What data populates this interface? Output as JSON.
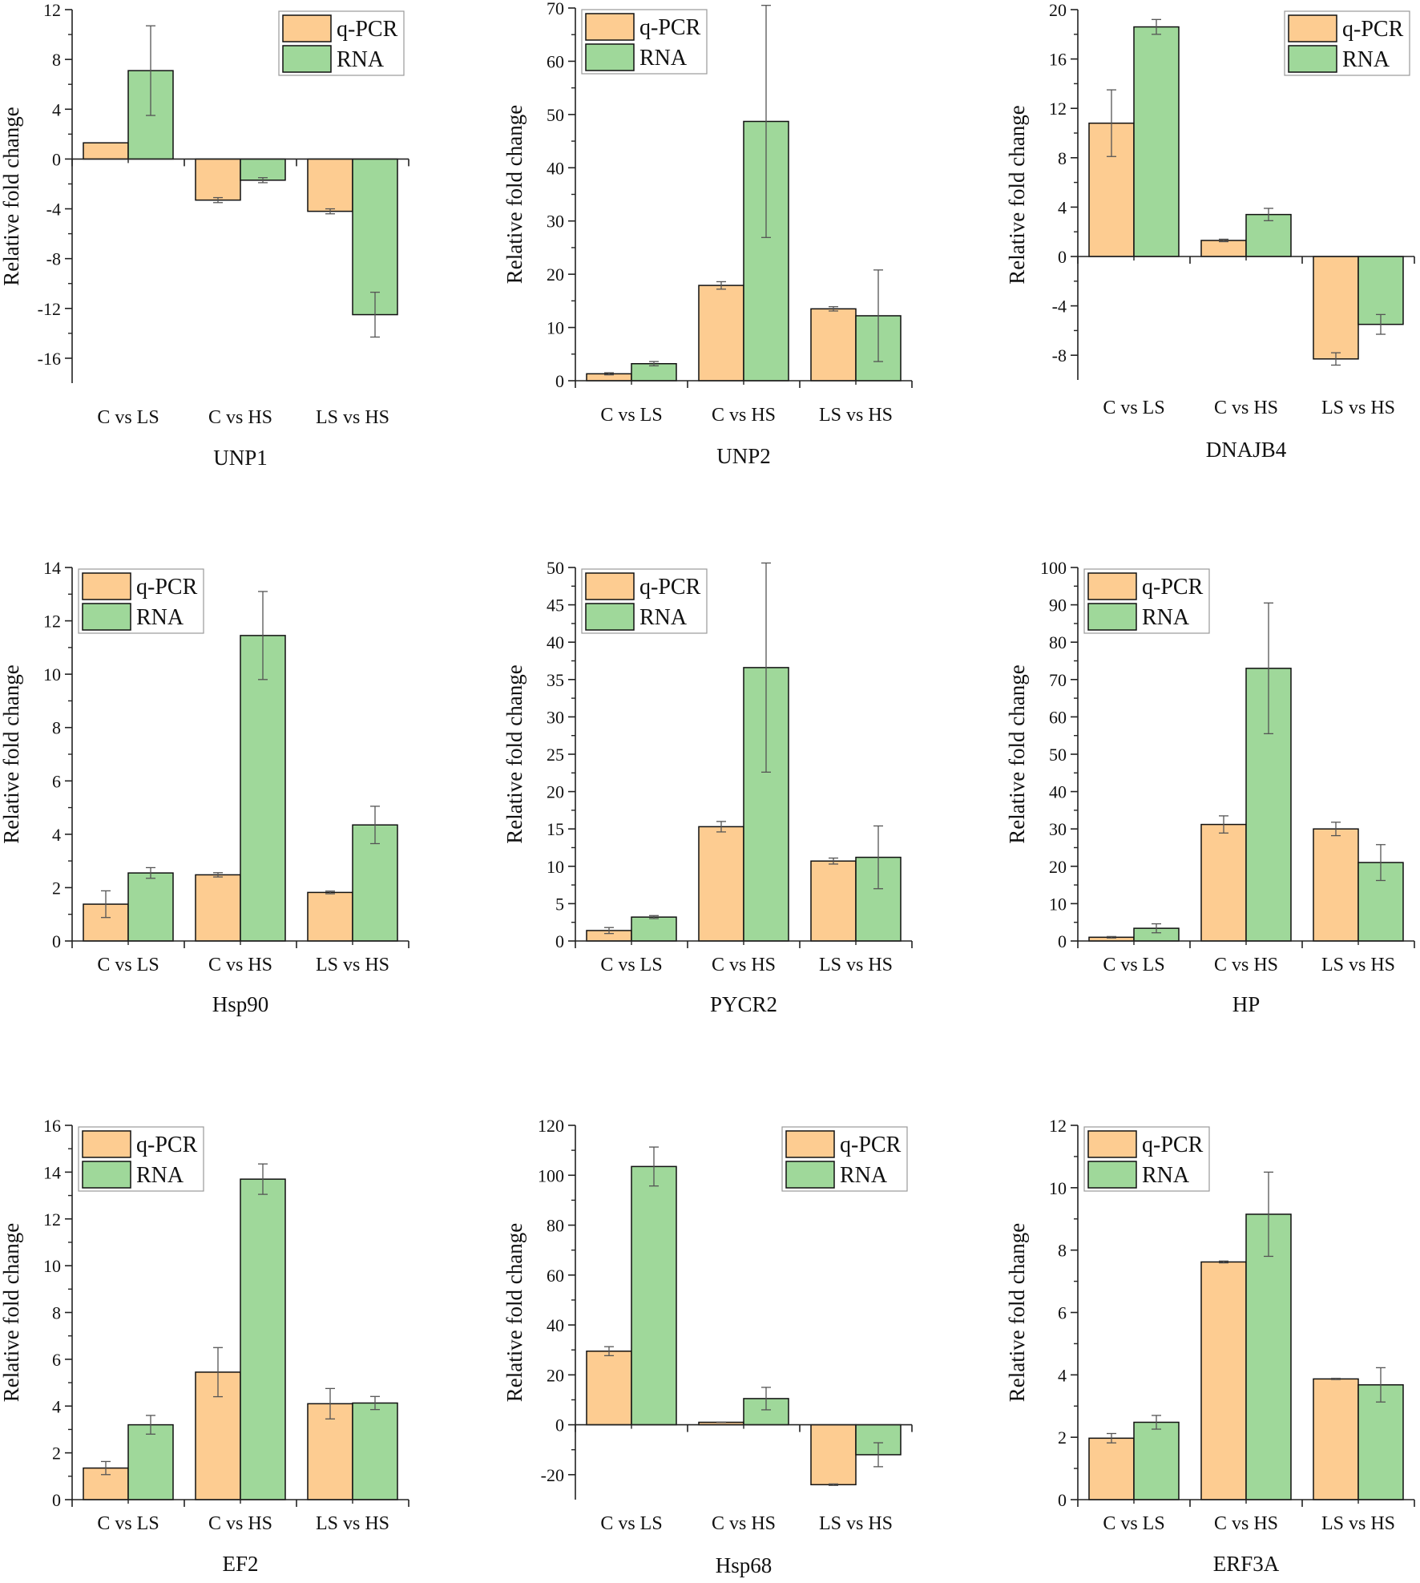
{
  "colors": {
    "qpcr": "#FDCC91",
    "rna": "#9FD89A",
    "axis": "#222222",
    "error": "#555555"
  },
  "chart_data": [
    {
      "type": "bar",
      "title": "UNP1",
      "ylabel": "Relative fold change",
      "categories": [
        "C vs LS",
        "C vs HS",
        "LS vs HS"
      ],
      "ylim": [
        -18,
        12
      ],
      "yticks": [
        -16,
        -12,
        -8,
        -4,
        0,
        4,
        8,
        12
      ],
      "legend": "top-right",
      "series": [
        {
          "name": "q-PCR",
          "values": [
            1.3,
            -3.3,
            -4.2
          ],
          "errors": [
            0,
            0.2,
            0.2
          ]
        },
        {
          "name": "RNA",
          "values": [
            7.1,
            -1.7,
            -12.5
          ],
          "errors": [
            3.6,
            0.2,
            1.8
          ]
        }
      ]
    },
    {
      "type": "bar",
      "title": "UNP2",
      "ylabel": "Relative fold change",
      "categories": [
        "C vs LS",
        "C vs HS",
        "LS vs HS"
      ],
      "ylim": [
        0,
        70
      ],
      "yticks": [
        0,
        10,
        20,
        30,
        40,
        50,
        60,
        70
      ],
      "legend": "top-left",
      "series": [
        {
          "name": "q-PCR",
          "values": [
            1.3,
            17.9,
            13.5
          ],
          "errors": [
            0.2,
            0.7,
            0.4
          ]
        },
        {
          "name": "RNA",
          "values": [
            3.2,
            48.7,
            12.2
          ],
          "errors": [
            0.4,
            21.8,
            8.6
          ]
        }
      ]
    },
    {
      "type": "bar",
      "title": "DNAJB4",
      "ylabel": "Relative fold change",
      "categories": [
        "C vs LS",
        "C vs HS",
        "LS vs HS"
      ],
      "ylim": [
        -10,
        20
      ],
      "yticks": [
        -8,
        -4,
        0,
        4,
        8,
        12,
        16,
        20
      ],
      "legend": "top-right",
      "series": [
        {
          "name": "q-PCR",
          "values": [
            10.8,
            1.3,
            -8.3
          ],
          "errors": [
            2.7,
            0.1,
            0.5
          ]
        },
        {
          "name": "RNA",
          "values": [
            18.6,
            3.4,
            -5.5
          ],
          "errors": [
            0.6,
            0.5,
            0.8
          ]
        }
      ]
    },
    {
      "type": "bar",
      "title": "Hsp90",
      "ylabel": "Relative fold change",
      "categories": [
        "C vs LS",
        "C vs HS",
        "LS vs HS"
      ],
      "ylim": [
        0,
        14
      ],
      "yticks": [
        0,
        2,
        4,
        6,
        8,
        10,
        12,
        14
      ],
      "legend": "top-left",
      "series": [
        {
          "name": "q-PCR",
          "values": [
            1.38,
            2.48,
            1.82
          ],
          "errors": [
            0.5,
            0.08,
            0.05
          ]
        },
        {
          "name": "RNA",
          "values": [
            2.55,
            11.45,
            4.35
          ],
          "errors": [
            0.2,
            1.65,
            0.7
          ]
        }
      ]
    },
    {
      "type": "bar",
      "title": "PYCR2",
      "ylabel": "Relative fold change",
      "categories": [
        "C vs LS",
        "C vs HS",
        "LS vs HS"
      ],
      "ylim": [
        0,
        50
      ],
      "yticks": [
        0,
        5,
        10,
        15,
        20,
        25,
        30,
        35,
        40,
        45,
        50
      ],
      "legend": "top-left",
      "series": [
        {
          "name": "q-PCR",
          "values": [
            1.4,
            15.3,
            10.7
          ],
          "errors": [
            0.4,
            0.7,
            0.4
          ]
        },
        {
          "name": "RNA",
          "values": [
            3.2,
            36.6,
            11.2
          ],
          "errors": [
            0.2,
            14.0,
            4.2
          ]
        }
      ]
    },
    {
      "type": "bar",
      "title": "HP",
      "ylabel": "Relative fold change",
      "categories": [
        "C vs LS",
        "C vs HS",
        "LS vs HS"
      ],
      "ylim": [
        0,
        100
      ],
      "yticks": [
        0,
        10,
        20,
        30,
        40,
        50,
        60,
        70,
        80,
        90,
        100
      ],
      "legend": "top-left",
      "series": [
        {
          "name": "q-PCR",
          "values": [
            1.0,
            31.2,
            30.0
          ],
          "errors": [
            0.2,
            2.3,
            1.8
          ]
        },
        {
          "name": "RNA",
          "values": [
            3.4,
            73.0,
            21.0
          ],
          "errors": [
            1.2,
            17.5,
            4.8
          ]
        }
      ]
    },
    {
      "type": "bar",
      "title": "EF2",
      "ylabel": "Relative fold change",
      "categories": [
        "C vs LS",
        "C vs HS",
        "LS vs HS"
      ],
      "ylim": [
        0,
        16
      ],
      "yticks": [
        0,
        2,
        4,
        6,
        8,
        10,
        12,
        14,
        16
      ],
      "legend": "top-left",
      "series": [
        {
          "name": "q-PCR",
          "values": [
            1.35,
            5.45,
            4.1
          ],
          "errors": [
            0.28,
            1.05,
            0.65
          ]
        },
        {
          "name": "RNA",
          "values": [
            3.2,
            13.7,
            4.13
          ],
          "errors": [
            0.4,
            0.65,
            0.28
          ]
        }
      ]
    },
    {
      "type": "bar",
      "title": "Hsp68",
      "ylabel": "Relative fold change",
      "categories": [
        "C vs LS",
        "C vs HS",
        "LS vs HS"
      ],
      "ylim": [
        -30,
        120
      ],
      "yticks": [
        -20,
        0,
        20,
        40,
        60,
        80,
        100,
        120
      ],
      "legend": "top-right",
      "series": [
        {
          "name": "q-PCR",
          "values": [
            29.5,
            1.0,
            -24.0
          ],
          "errors": [
            1.8,
            0.1,
            0.3
          ]
        },
        {
          "name": "RNA",
          "values": [
            103.5,
            10.5,
            -12.0
          ],
          "errors": [
            7.8,
            4.5,
            4.8
          ]
        }
      ]
    },
    {
      "type": "bar",
      "title": "ERF3A",
      "ylabel": "Relative fold change",
      "categories": [
        "C vs LS",
        "C vs HS",
        "LS vs HS"
      ],
      "ylim": [
        0,
        12
      ],
      "yticks": [
        0,
        2,
        4,
        6,
        8,
        10,
        12
      ],
      "legend": "top-left",
      "series": [
        {
          "name": "q-PCR",
          "values": [
            1.97,
            7.62,
            3.87
          ],
          "errors": [
            0.15,
            0.03,
            0.02
          ]
        },
        {
          "name": "RNA",
          "values": [
            2.48,
            9.15,
            3.68
          ],
          "errors": [
            0.22,
            1.35,
            0.55
          ]
        }
      ]
    }
  ]
}
